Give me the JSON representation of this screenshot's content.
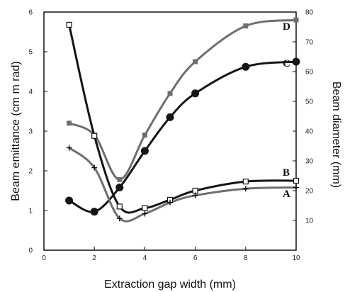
{
  "chart_data": {
    "type": "line",
    "xlabel": "Extraction gap width (mm)",
    "ylabel": "Beam emittance (cm m rad)",
    "y2label": "Beam diameter (mm)",
    "xlim": [
      0,
      10
    ],
    "ylim": [
      0,
      6
    ],
    "y2lim": [
      0,
      80
    ],
    "xticks": [
      "0",
      "2",
      "4",
      "6",
      "8",
      "10"
    ],
    "yticks": [
      "0",
      "1",
      "2",
      "3",
      "4",
      "5",
      "6"
    ],
    "y2ticks": [
      "10",
      "20",
      "30",
      "40",
      "50",
      "60",
      "70",
      "80"
    ],
    "grid": false,
    "series": [
      {
        "name": "D",
        "axis": "left",
        "color": "#6e6e6e",
        "marker": "square",
        "x": [
          1,
          2,
          3,
          4,
          5,
          6,
          8,
          10
        ],
        "values": [
          3.2,
          2.9,
          1.78,
          2.9,
          3.95,
          4.75,
          5.65,
          5.8
        ]
      },
      {
        "name": "C",
        "axis": "left",
        "color": "#151515",
        "marker": "circle",
        "x": [
          1,
          2,
          3,
          4,
          5,
          6,
          8,
          10
        ],
        "values": [
          1.25,
          0.97,
          1.58,
          2.5,
          3.35,
          3.95,
          4.62,
          4.75
        ]
      },
      {
        "name": "B",
        "axis": "left",
        "color": "#151515",
        "marker": "open-square",
        "x": [
          1,
          2,
          3,
          4,
          5,
          6,
          8,
          10
        ],
        "values": [
          5.68,
          2.88,
          1.1,
          1.06,
          1.27,
          1.5,
          1.73,
          1.75
        ]
      },
      {
        "name": "A",
        "axis": "left",
        "color": "#6e6e6e",
        "marker": "plus",
        "x": [
          1,
          2,
          3,
          4,
          5,
          6,
          8,
          10
        ],
        "values": [
          2.58,
          2.08,
          0.8,
          0.92,
          1.2,
          1.38,
          1.55,
          1.58
        ]
      }
    ]
  }
}
